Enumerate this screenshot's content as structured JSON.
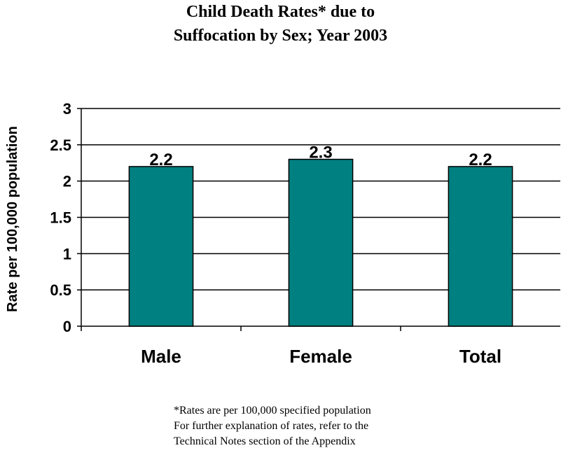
{
  "chart_data": {
    "type": "bar",
    "title_lines": [
      "Child Death Rates* due to",
      "Suffocation by Sex; Year 2003"
    ],
    "xlabel": "",
    "ylabel": "Rate per 100,000 population",
    "categories": [
      "Male",
      "Female",
      "Total"
    ],
    "values": [
      2.2,
      2.3,
      2.2
    ],
    "data_labels": [
      "2.2",
      "2.3",
      "2.2"
    ],
    "ylim": [
      0,
      3
    ],
    "yticks": [
      0,
      0.5,
      1,
      1.5,
      2,
      2.5,
      3
    ],
    "ytick_labels": [
      "0",
      "0.5",
      "1",
      "1.5",
      "2",
      "2.5",
      "3"
    ],
    "grid": true,
    "legend": "none",
    "bar_color": "#008080",
    "footnotes": [
      "*Rates are per 100,000 specified population",
      "For further explanation of rates, refer to the",
      "Technical Notes section of the Appendix"
    ]
  }
}
